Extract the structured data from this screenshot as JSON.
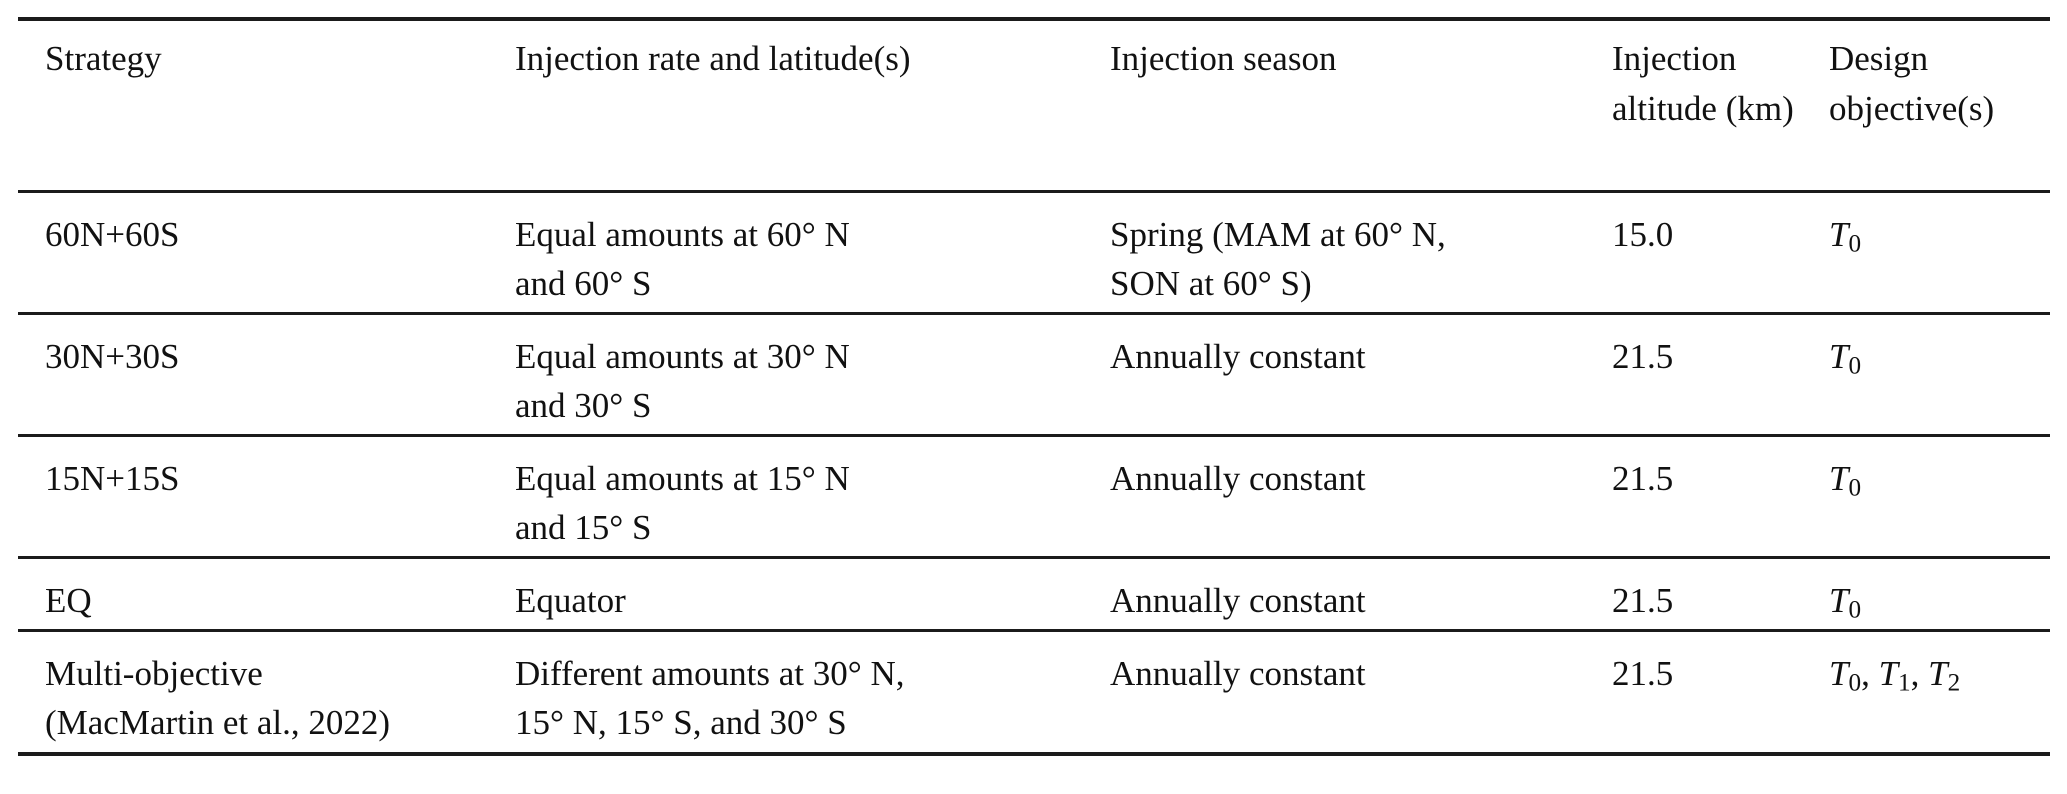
{
  "page": {
    "background": "#ffffff",
    "text_color": "#111111",
    "rule_color": "#1b1b1b"
  },
  "table": {
    "columns": [
      "Strategy",
      "Injection rate and latitude(s)",
      "Injection season",
      "Injection altitude (km)",
      "Design objective(s)"
    ],
    "rows": [
      {
        "strategy": [
          "60N+60S"
        ],
        "rate": [
          "Equal amounts at 60° N",
          "and 60° S"
        ],
        "season": [
          "Spring (MAM at 60° N,",
          "SON at 60° S)"
        ],
        "altitude": "15.0",
        "objectives": [
          {
            "symbol": "T",
            "subscript": "0"
          }
        ]
      },
      {
        "strategy": [
          "30N+30S"
        ],
        "rate": [
          "Equal amounts at 30° N",
          "and 30° S"
        ],
        "season": [
          "Annually constant"
        ],
        "altitude": "21.5",
        "objectives": [
          {
            "symbol": "T",
            "subscript": "0"
          }
        ]
      },
      {
        "strategy": [
          "15N+15S"
        ],
        "rate": [
          "Equal amounts at 15° N",
          "and 15° S"
        ],
        "season": [
          "Annually constant"
        ],
        "altitude": "21.5",
        "objectives": [
          {
            "symbol": "T",
            "subscript": "0"
          }
        ]
      },
      {
        "strategy": [
          "EQ"
        ],
        "rate": [
          "Equator"
        ],
        "season": [
          "Annually constant"
        ],
        "altitude": "21.5",
        "objectives": [
          {
            "symbol": "T",
            "subscript": "0"
          }
        ]
      },
      {
        "strategy": [
          "Multi-objective",
          "(MacMartin et al., 2022)"
        ],
        "rate": [
          "Different amounts at 30° N,",
          "15° N, 15° S, and 30° S"
        ],
        "season": [
          "Annually constant"
        ],
        "altitude": "21.5",
        "objectives": [
          {
            "symbol": "T",
            "subscript": "0"
          },
          {
            "symbol": "T",
            "subscript": "1"
          },
          {
            "symbol": "T",
            "subscript": "2"
          }
        ]
      }
    ]
  }
}
